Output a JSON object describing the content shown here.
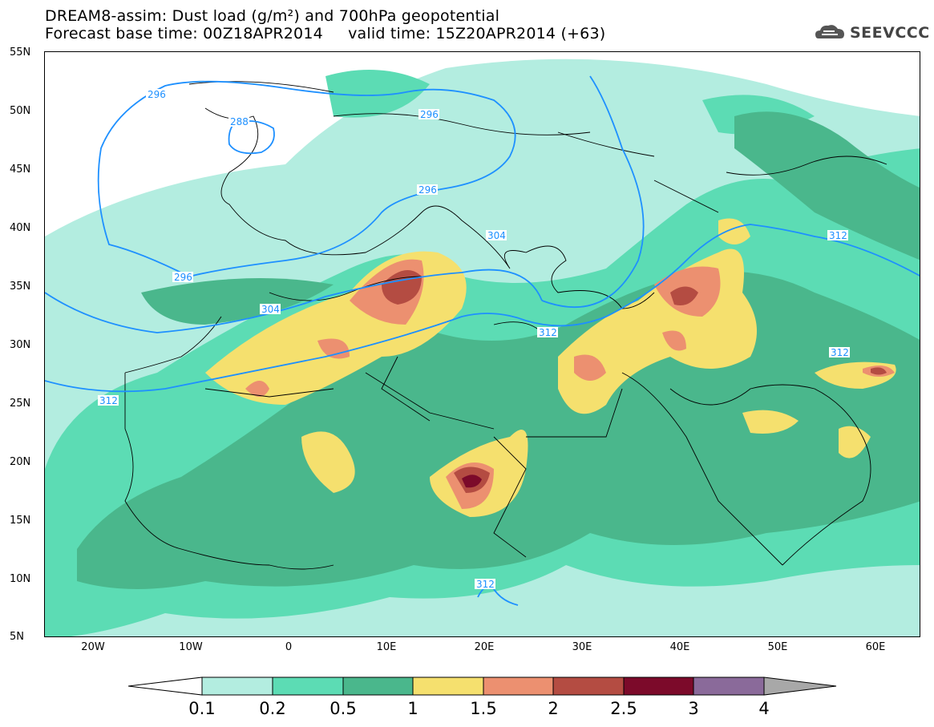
{
  "header": {
    "title_line1": "DREAM8-assim: Dust load (g/m²) and 700hPa geopotential",
    "title_line2": "Forecast base time: 00Z18APR2014     valid time: 15Z20APR2014 (+63)",
    "logo_text": "SEEVCCC"
  },
  "axes": {
    "lat_labels": [
      "55N",
      "50N",
      "45N",
      "40N",
      "35N",
      "30N",
      "25N",
      "20N",
      "15N",
      "10N",
      "5N"
    ],
    "lon_labels": [
      "20W",
      "10W",
      "0",
      "10E",
      "20E",
      "30E",
      "40E",
      "50E",
      "60E"
    ]
  },
  "contours": {
    "labels": [
      "296",
      "288",
      "296",
      "296",
      "296",
      "304",
      "304",
      "312",
      "312",
      "312",
      "312",
      "312"
    ],
    "line_color": "#1e90ff"
  },
  "colorbar": {
    "labels": [
      "0.1",
      "0.2",
      "0.5",
      "1",
      "1.5",
      "2",
      "2.5",
      "3",
      "4"
    ],
    "colors": [
      "#ffffff",
      "#b3ede0",
      "#5cdcb4",
      "#4ab78c",
      "#f5e06e",
      "#ec9070",
      "#b44c42",
      "#7c0a2a",
      "#8a6a9a",
      "#a8a8a8"
    ]
  }
}
